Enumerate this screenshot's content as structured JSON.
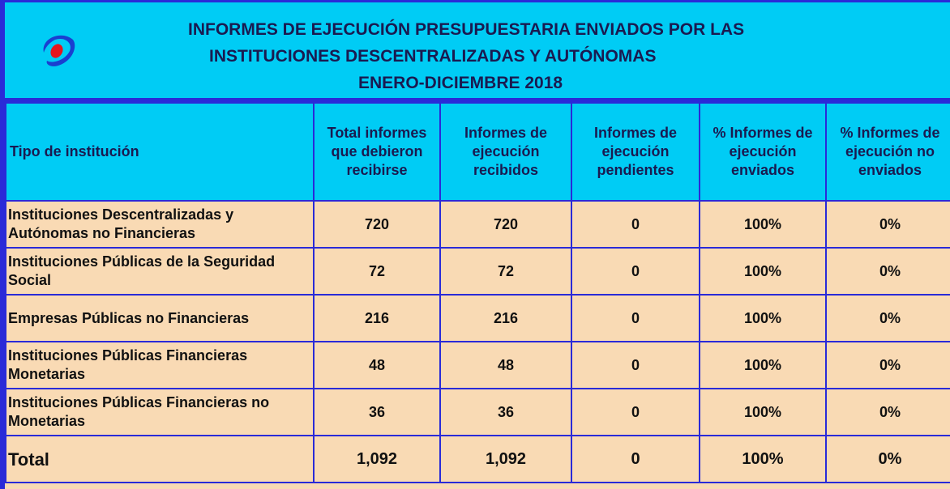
{
  "header": {
    "title_lines": [
      "INFORMES DE EJECUCIÓN PRESUPUESTARIA ENVIADOS POR LAS",
      "INSTITUCIONES DESCENTRALIZADAS Y AUTÓNOMAS",
      "ENERO-DICIEMBRE 2018"
    ]
  },
  "table": {
    "columns": [
      "Tipo de institución",
      "Total informes que debieron recibirse",
      "Informes de ejecución recibidos",
      "Informes de ejecución pendientes",
      "% Informes de ejecución enviados",
      "% Informes de ejecución no enviados"
    ],
    "rows": [
      [
        "Instituciones Descentralizadas y Autónomas no Financieras",
        "720",
        "720",
        "0",
        "100%",
        "0%"
      ],
      [
        "Instituciones Públicas de la Seguridad Social",
        "72",
        "72",
        "0",
        "100%",
        "0%"
      ],
      [
        "Empresas Públicas no Financieras",
        "216",
        "216",
        "0",
        "100%",
        "0%"
      ],
      [
        "Instituciones Públicas Financieras Monetarias",
        "48",
        "48",
        "0",
        "100%",
        "0%"
      ],
      [
        "Instituciones Públicas Financieras no Monetarias",
        "36",
        "36",
        "0",
        "100%",
        "0%"
      ]
    ],
    "total": [
      "Total",
      "1,092",
      "1,092",
      "0",
      "100%",
      "0%"
    ]
  }
}
